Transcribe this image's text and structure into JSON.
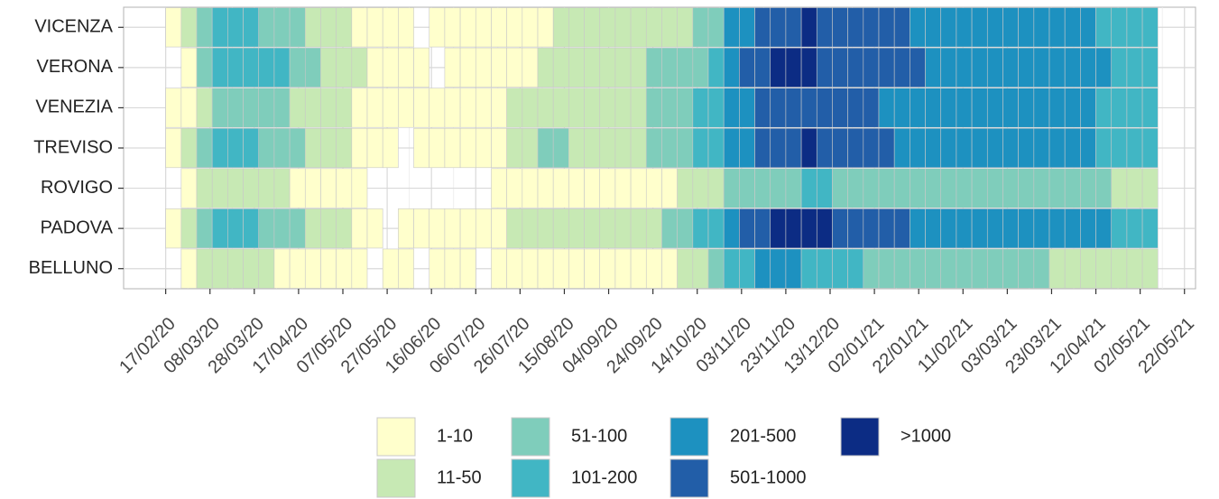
{
  "chart_data": {
    "type": "heatmap",
    "x": [
      0,
      7,
      14,
      21,
      28,
      35,
      42,
      49,
      56,
      63,
      70,
      77,
      84,
      91,
      98,
      105,
      112,
      119,
      126,
      133,
      140,
      147,
      154,
      161,
      168,
      175,
      182,
      189,
      196,
      203,
      210,
      217,
      224,
      231,
      238,
      245,
      252,
      259,
      266,
      273,
      280,
      287,
      294,
      301,
      308,
      315,
      322,
      329,
      336,
      343,
      350,
      357,
      364,
      371,
      378,
      385,
      392,
      399,
      406,
      413,
      420,
      427,
      434,
      441
    ],
    "xlim": [
      -19,
      465
    ],
    "xticks": [
      {
        "value": 0,
        "label": "17/02/20"
      },
      {
        "value": 20,
        "label": "08/03/20"
      },
      {
        "value": 40,
        "label": "28/03/20"
      },
      {
        "value": 60,
        "label": "17/04/20"
      },
      {
        "value": 80,
        "label": "07/05/20"
      },
      {
        "value": 100,
        "label": "27/05/20"
      },
      {
        "value": 120,
        "label": "16/06/20"
      },
      {
        "value": 140,
        "label": "06/07/20"
      },
      {
        "value": 160,
        "label": "26/07/20"
      },
      {
        "value": 180,
        "label": "15/08/20"
      },
      {
        "value": 200,
        "label": "04/09/20"
      },
      {
        "value": 220,
        "label": "24/09/20"
      },
      {
        "value": 240,
        "label": "14/10/20"
      },
      {
        "value": 260,
        "label": "03/11/20"
      },
      {
        "value": 280,
        "label": "23/11/20"
      },
      {
        "value": 300,
        "label": "13/12/20"
      },
      {
        "value": 320,
        "label": "02/01/21"
      },
      {
        "value": 340,
        "label": "22/01/21"
      },
      {
        "value": 360,
        "label": "11/02/21"
      },
      {
        "value": 380,
        "label": "03/03/21"
      },
      {
        "value": 400,
        "label": "23/03/21"
      },
      {
        "value": 420,
        "label": "12/04/21"
      },
      {
        "value": 440,
        "label": "02/05/21"
      },
      {
        "value": 460,
        "label": "22/05/21"
      }
    ],
    "levels": [
      "1-10",
      "11-50",
      "51-100",
      "101-200",
      "201-500",
      "501-1000",
      ">1000"
    ],
    "colors": [
      "#ffffcc",
      "#c7e9b4",
      "#7fcdbb",
      "#41b6c4",
      "#1d91c0",
      "#225ea8",
      "#0c2c84"
    ],
    "grid": true,
    "series": [
      {
        "name": "VICENZA",
        "values": [
          1,
          2,
          3,
          4,
          4,
          4,
          3,
          3,
          3,
          2,
          2,
          2,
          1,
          1,
          1,
          1,
          null,
          1,
          1,
          1,
          1,
          1,
          1,
          1,
          1,
          2,
          2,
          2,
          2,
          2,
          2,
          2,
          2,
          2,
          3,
          3,
          5,
          5,
          6,
          6,
          6,
          7,
          6,
          6,
          6,
          6,
          6,
          6,
          5,
          5,
          5,
          5,
          5,
          5,
          5,
          5,
          5,
          5,
          5,
          5,
          4,
          4,
          4,
          4
        ]
      },
      {
        "name": "VERONA",
        "values": [
          null,
          1,
          3,
          4,
          4,
          4,
          4,
          4,
          3,
          3,
          2,
          2,
          2,
          1,
          1,
          1,
          1,
          null,
          1,
          1,
          1,
          1,
          1,
          1,
          2,
          2,
          2,
          2,
          2,
          2,
          2,
          3,
          3,
          3,
          3,
          4,
          5,
          6,
          6,
          7,
          7,
          7,
          6,
          6,
          6,
          6,
          6,
          6,
          6,
          5,
          5,
          5,
          5,
          5,
          5,
          5,
          5,
          5,
          5,
          5,
          5,
          4,
          4,
          4
        ]
      },
      {
        "name": "VENEZIA",
        "values": [
          1,
          1,
          2,
          3,
          3,
          3,
          3,
          3,
          2,
          2,
          2,
          2,
          1,
          1,
          1,
          1,
          1,
          1,
          1,
          1,
          1,
          1,
          2,
          2,
          2,
          2,
          2,
          2,
          2,
          2,
          2,
          3,
          3,
          3,
          4,
          4,
          5,
          5,
          6,
          6,
          6,
          6,
          6,
          6,
          6,
          6,
          5,
          5,
          5,
          5,
          5,
          5,
          5,
          5,
          5,
          5,
          5,
          5,
          5,
          5,
          4,
          4,
          4,
          4
        ]
      },
      {
        "name": "TREVISO",
        "values": [
          1,
          2,
          3,
          4,
          4,
          4,
          3,
          3,
          3,
          2,
          2,
          2,
          1,
          1,
          1,
          null,
          1,
          1,
          1,
          1,
          1,
          1,
          2,
          2,
          3,
          3,
          2,
          2,
          2,
          2,
          2,
          3,
          3,
          3,
          4,
          4,
          5,
          5,
          6,
          6,
          6,
          7,
          6,
          6,
          6,
          6,
          6,
          5,
          5,
          5,
          5,
          5,
          5,
          5,
          5,
          5,
          5,
          5,
          5,
          5,
          4,
          4,
          4,
          4
        ]
      },
      {
        "name": "ROVIGO",
        "values": [
          null,
          1,
          2,
          2,
          2,
          2,
          2,
          2,
          1,
          1,
          1,
          1,
          1,
          null,
          null,
          null,
          null,
          null,
          null,
          null,
          null,
          1,
          1,
          1,
          1,
          1,
          1,
          1,
          1,
          1,
          1,
          1,
          1,
          2,
          2,
          2,
          3,
          3,
          3,
          3,
          3,
          4,
          4,
          3,
          3,
          3,
          3,
          3,
          3,
          3,
          3,
          3,
          3,
          3,
          3,
          3,
          3,
          3,
          3,
          3,
          3,
          2,
          2,
          2
        ]
      },
      {
        "name": "PADOVA",
        "values": [
          1,
          2,
          3,
          4,
          4,
          4,
          3,
          3,
          3,
          2,
          2,
          2,
          1,
          1,
          null,
          1,
          1,
          1,
          1,
          1,
          1,
          1,
          2,
          2,
          2,
          2,
          2,
          2,
          2,
          2,
          2,
          2,
          3,
          3,
          4,
          4,
          5,
          6,
          6,
          7,
          7,
          7,
          7,
          6,
          6,
          6,
          6,
          6,
          5,
          5,
          5,
          5,
          5,
          5,
          5,
          5,
          5,
          5,
          5,
          5,
          5,
          4,
          4,
          4
        ]
      },
      {
        "name": "BELLUNO",
        "values": [
          null,
          1,
          2,
          2,
          2,
          2,
          2,
          1,
          1,
          1,
          1,
          1,
          1,
          null,
          1,
          1,
          null,
          1,
          1,
          1,
          null,
          1,
          1,
          1,
          1,
          1,
          1,
          1,
          1,
          1,
          1,
          1,
          1,
          2,
          2,
          3,
          4,
          4,
          5,
          5,
          5,
          4,
          4,
          4,
          4,
          3,
          3,
          3,
          3,
          3,
          3,
          3,
          3,
          3,
          3,
          3,
          3,
          2,
          2,
          2,
          2,
          2,
          2,
          2
        ]
      }
    ]
  }
}
